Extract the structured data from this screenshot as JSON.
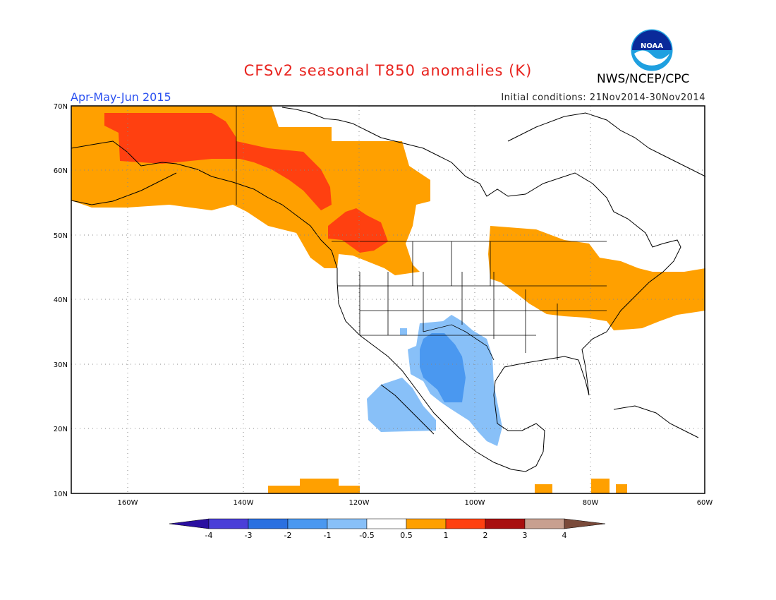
{
  "header": {
    "title": "CFSv2 seasonal T850 anomalies (K)",
    "org": "NWS/NCEP/CPC",
    "period": "Apr-May-Jun 2015",
    "initial_conditions": "Initial conditions: 21Nov2014-30Nov2014",
    "logo_text": "NOAA"
  },
  "map": {
    "lon_labels": [
      "160W",
      "140W",
      "120W",
      "100W",
      "80W",
      "60W"
    ],
    "lat_labels": [
      "70N",
      "60N",
      "50N",
      "40N",
      "30N",
      "20N",
      "10N"
    ],
    "extent": {
      "lon": [
        -170,
        -60
      ],
      "lat": [
        10,
        70
      ]
    },
    "grid": true
  },
  "colorbar": {
    "labels": [
      "-4",
      "-3",
      "-2",
      "-1",
      "-0.5",
      "0.5",
      "1",
      "2",
      "3",
      "4"
    ],
    "colors": [
      "#2a0fa0",
      "#4a3fd8",
      "#2a70e0",
      "#4a98f0",
      "#88c0f8",
      "#ffffff",
      "#ffa000",
      "#ff4010",
      "#a80f0f",
      "#c8a090",
      "#7a4a3a"
    ]
  },
  "colors": {
    "warm1": "#ffa000",
    "warm2": "#ff4010",
    "cool1": "#88c0f8",
    "cool2": "#4a98f0",
    "title": "#e8231e",
    "period": "#2a50f0"
  }
}
